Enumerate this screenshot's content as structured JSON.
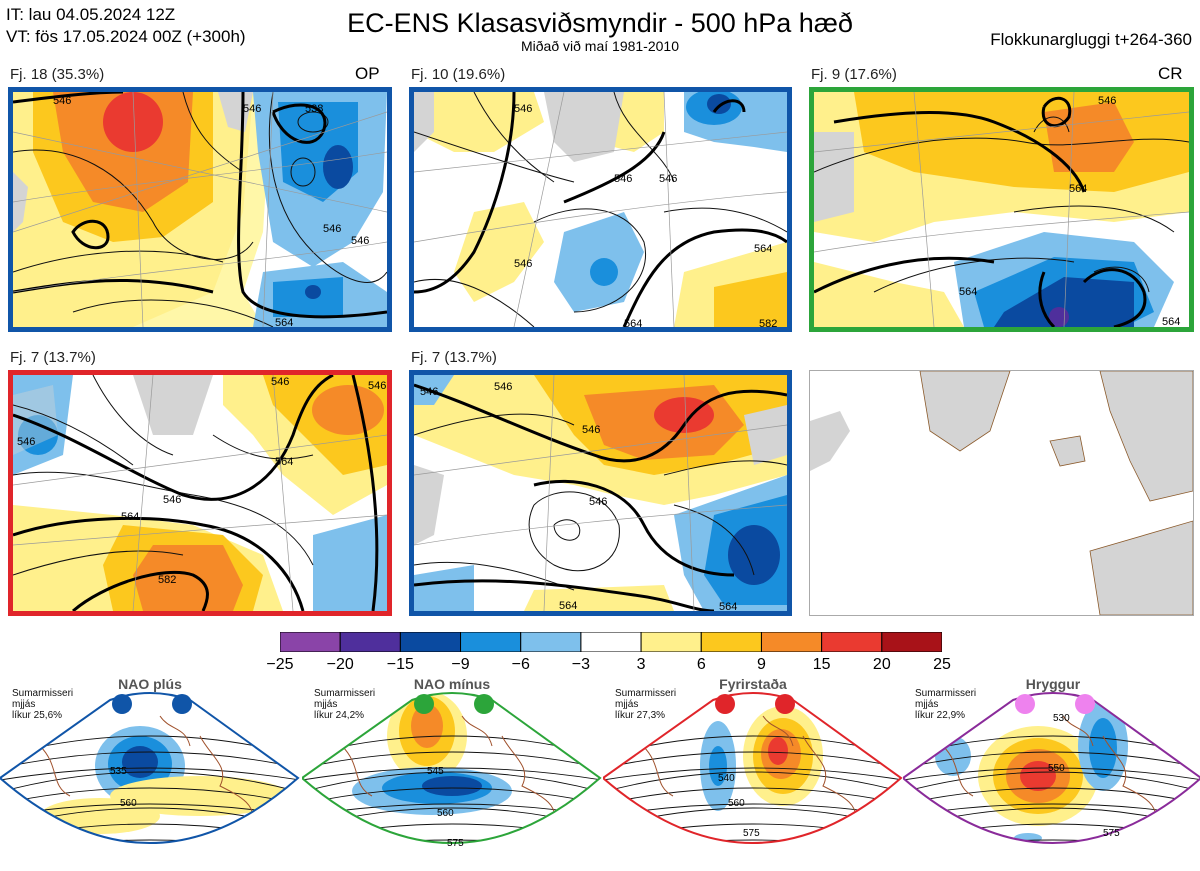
{
  "header": {
    "it_line": "IT: lau 04.05.2024 12Z",
    "vt_line": "VT: fös 17.05.2024 00Z  (+300h)",
    "title": "EC-ENS Klasasviðsmyndir - 500 hPa hæð",
    "subtitle": "Miðað við maí 1981-2010",
    "window": "Flokkunargluggi t+264-360"
  },
  "panels": [
    {
      "label": "Fj. 18 (35.3%)",
      "tag": "OP",
      "frame_color": "#1055a8"
    },
    {
      "label": "Fj. 10 (19.6%)",
      "tag": "",
      "frame_color": "#1055a8"
    },
    {
      "label": "Fj. 9 (17.6%)",
      "tag": "CR",
      "frame_color": "#2ca53a"
    },
    {
      "label": "Fj. 7 (13.7%)",
      "tag": "",
      "frame_color": "#e0252a"
    },
    {
      "label": "Fj. 7 (13.7%)",
      "tag": "",
      "frame_color": "#1055a8"
    },
    {
      "label": "",
      "tag": "",
      "frame_color": "#aaaaaa"
    }
  ],
  "contour_labels": {
    "p1": [
      "546",
      "538",
      "546",
      "546",
      "564",
      "546"
    ],
    "p2": [
      "546",
      "546",
      "564",
      "546",
      "546",
      "564",
      "582"
    ],
    "p3": [
      "546",
      "564",
      "564",
      "564"
    ],
    "p4": [
      "546",
      "546",
      "564",
      "546",
      "564",
      "582",
      "546"
    ],
    "p5": [
      "546",
      "546",
      "546",
      "564",
      "564",
      "546"
    ]
  },
  "colorbar": {
    "ticks": [
      "−25",
      "−20",
      "−15",
      "−9",
      "−6",
      "−3",
      "3",
      "6",
      "9",
      "15",
      "20",
      "25"
    ],
    "colors": [
      "#8a44a8",
      "#4f2f9c",
      "#0a4aa0",
      "#1a8fdc",
      "#7ec0ec",
      "#ffffff",
      "#fff08c",
      "#fcc81e",
      "#f58a28",
      "#ea3a30",
      "#a81218"
    ]
  },
  "regimes": [
    {
      "name": "NAO plús",
      "note_l1": "Sumarmisseri",
      "note_l2": "mjjás",
      "note_l3": "líkur 25,6%",
      "color": "#1055a8",
      "dot_color": "#1055a8",
      "contours": [
        "535",
        "560"
      ]
    },
    {
      "name": "NAO mínus",
      "note_l1": "Sumarmisseri",
      "note_l2": "mjjás",
      "note_l3": "líkur 24,2%",
      "color": "#2ca53a",
      "dot_color": "#2ca53a",
      "contours": [
        "545",
        "560",
        "575"
      ]
    },
    {
      "name": "Fyrirstaða",
      "note_l1": "Sumarmisseri",
      "note_l2": "mjjás",
      "note_l3": "líkur 27,3%",
      "color": "#e0252a",
      "dot_color": "#e0252a",
      "contours": [
        "540",
        "560",
        "575"
      ]
    },
    {
      "name": "Hryggur",
      "note_l1": "Sumarmisseri",
      "note_l2": "mjjás",
      "note_l3": "líkur 22,9%",
      "color": "#8a2b9a",
      "dot_color": "#ee82ee",
      "contours": [
        "530",
        "550",
        "575"
      ]
    }
  ]
}
